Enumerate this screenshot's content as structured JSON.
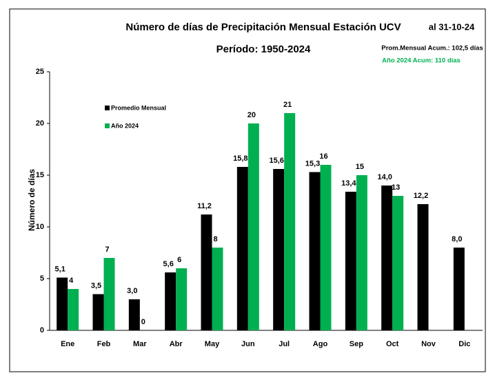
{
  "chart_data": {
    "type": "bar",
    "title": "Número de días de Precipitación Mensual Estación UCV",
    "subtitle": "Período: 1950-2024",
    "annotations": [
      "al 31-10-24",
      "Prom.Mensual  Acum.: 102,5 días",
      "Año 2024 Acum: 110 días"
    ],
    "ylabel": "Número de días",
    "categories": [
      "Ene",
      "Feb",
      "Mar",
      "Abr",
      "May",
      "Jun",
      "Jul",
      "Ago",
      "Sep",
      "Oct",
      "Nov",
      "Dic"
    ],
    "series": [
      {
        "name": "Promedio Mensual",
        "color": "#000000",
        "values": [
          5.1,
          3.5,
          3.0,
          5.6,
          11.2,
          15.8,
          15.6,
          15.3,
          13.4,
          14.0,
          12.2,
          8.0
        ],
        "value_labels": [
          "5,1",
          "3,5",
          "3,0",
          "5,6",
          "11,2",
          "15,8",
          "15,6",
          "15,3",
          "13,4",
          "14,0",
          "12,2",
          "8,0"
        ]
      },
      {
        "name": "Año 2024",
        "color": "#00b050",
        "values": [
          4,
          7,
          0,
          6,
          8,
          20,
          21,
          16,
          15,
          13,
          null,
          null
        ]
      }
    ],
    "ylim": [
      0,
      25
    ],
    "yticks": [
      0,
      5,
      10,
      15,
      20,
      25
    ],
    "grid": false
  }
}
